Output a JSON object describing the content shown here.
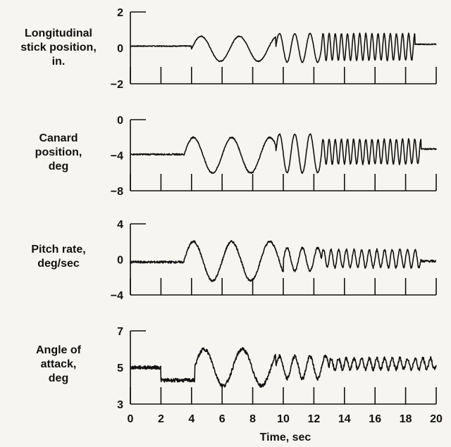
{
  "chart_data": [
    {
      "type": "line",
      "label_lines": [
        "Longitudinal",
        "stick position,",
        "in."
      ],
      "ylim": [
        -2,
        2
      ],
      "y_ticks": [
        "2",
        "0",
        "−2"
      ],
      "x_ticks": [
        0,
        2,
        4,
        6,
        8,
        10,
        12,
        14,
        16,
        18,
        20
      ],
      "segments": [
        {
          "t0": 0,
          "t1": 4,
          "period": 4,
          "amp": 0,
          "offset": 0.1,
          "phase": 0
        },
        {
          "t0": 4,
          "t1": 9.5,
          "period": 2.5,
          "amp": 0.7,
          "offset": -0.05,
          "phase": 0
        },
        {
          "t0": 9.5,
          "t1": 12.5,
          "period": 1.0,
          "amp": 0.8,
          "offset": 0,
          "phase": 0
        },
        {
          "t0": 12.5,
          "t1": 18.6,
          "period": 0.4,
          "amp": 0.75,
          "offset": 0.05,
          "phase": 0
        },
        {
          "t0": 18.6,
          "t1": 20,
          "period": 2,
          "amp": 0,
          "offset": 0.2,
          "phase": 0
        }
      ],
      "noise": 0.05
    },
    {
      "type": "line",
      "label_lines": [
        "Canard",
        "position,",
        "deg"
      ],
      "ylim": [
        -8,
        0
      ],
      "y_ticks": [
        "0",
        "−4",
        "−8"
      ],
      "x_ticks": [
        0,
        2,
        4,
        6,
        8,
        10,
        12,
        14,
        16,
        18,
        20
      ],
      "segments": [
        {
          "t0": 0,
          "t1": 3.5,
          "period": 4,
          "amp": 0,
          "offset": -3.9,
          "phase": 0
        },
        {
          "t0": 3.5,
          "t1": 9.5,
          "period": 2.5,
          "amp": 2.0,
          "offset": -4.0,
          "phase": 0
        },
        {
          "t0": 9.5,
          "t1": 12.5,
          "period": 1.0,
          "amp": 2.2,
          "offset": -3.8,
          "phase": 0
        },
        {
          "t0": 12.5,
          "t1": 19,
          "period": 0.4,
          "amp": 1.4,
          "offset": -3.6,
          "phase": 0
        },
        {
          "t0": 19,
          "t1": 20,
          "period": 2,
          "amp": 0,
          "offset": -3.3,
          "phase": 0
        }
      ],
      "noise": 0.15
    },
    {
      "type": "line",
      "label_lines": [
        "Pitch rate,",
        "deg/sec"
      ],
      "ylim": [
        -4,
        4
      ],
      "y_ticks": [
        "4",
        "0",
        "−4"
      ],
      "x_ticks": [
        0,
        2,
        4,
        6,
        8,
        10,
        12,
        14,
        16,
        18,
        20
      ],
      "segments": [
        {
          "t0": 0,
          "t1": 3.5,
          "period": 4,
          "amp": 0,
          "offset": -0.3,
          "phase": 0
        },
        {
          "t0": 3.5,
          "t1": 10,
          "period": 2.5,
          "amp": 2.2,
          "offset": -0.2,
          "phase": 0
        },
        {
          "t0": 10,
          "t1": 12.5,
          "period": 1.0,
          "amp": 1.3,
          "offset": 0,
          "phase": 0
        },
        {
          "t0": 12.5,
          "t1": 19,
          "period": 0.5,
          "amp": 1.0,
          "offset": 0.1,
          "phase": 0
        },
        {
          "t0": 19,
          "t1": 20,
          "period": 2,
          "amp": 0,
          "offset": -0.2,
          "phase": 0
        }
      ],
      "noise": 0.25
    },
    {
      "type": "line",
      "label_lines": [
        "Angle of",
        "attack,",
        "deg"
      ],
      "ylim": [
        3,
        7
      ],
      "y_ticks": [
        "7",
        "5",
        "3"
      ],
      "x_ticks": [
        0,
        2,
        4,
        6,
        8,
        10,
        12,
        14,
        16,
        18,
        20
      ],
      "x_tick_labels": [
        "0",
        "2",
        "4",
        "6",
        "8",
        "10",
        "12",
        "14",
        "16",
        "18",
        "20"
      ],
      "xlabel": "Time, sec",
      "segments": [
        {
          "t0": 0,
          "t1": 2,
          "period": 4,
          "amp": 0,
          "offset": 5.0,
          "phase": 0
        },
        {
          "t0": 2,
          "t1": 4.2,
          "period": 4,
          "amp": 0,
          "offset": 4.3,
          "phase": 0
        },
        {
          "t0": 4.2,
          "t1": 9.5,
          "period": 2.5,
          "amp": 1.0,
          "offset": 5.0,
          "phase": 0
        },
        {
          "t0": 9.5,
          "t1": 13,
          "period": 1.0,
          "amp": 0.6,
          "offset": 5.0,
          "phase": 0
        },
        {
          "t0": 13,
          "t1": 20,
          "period": 0.5,
          "amp": 0.3,
          "offset": 5.2,
          "phase": 0
        }
      ],
      "noise": 0.2
    }
  ]
}
